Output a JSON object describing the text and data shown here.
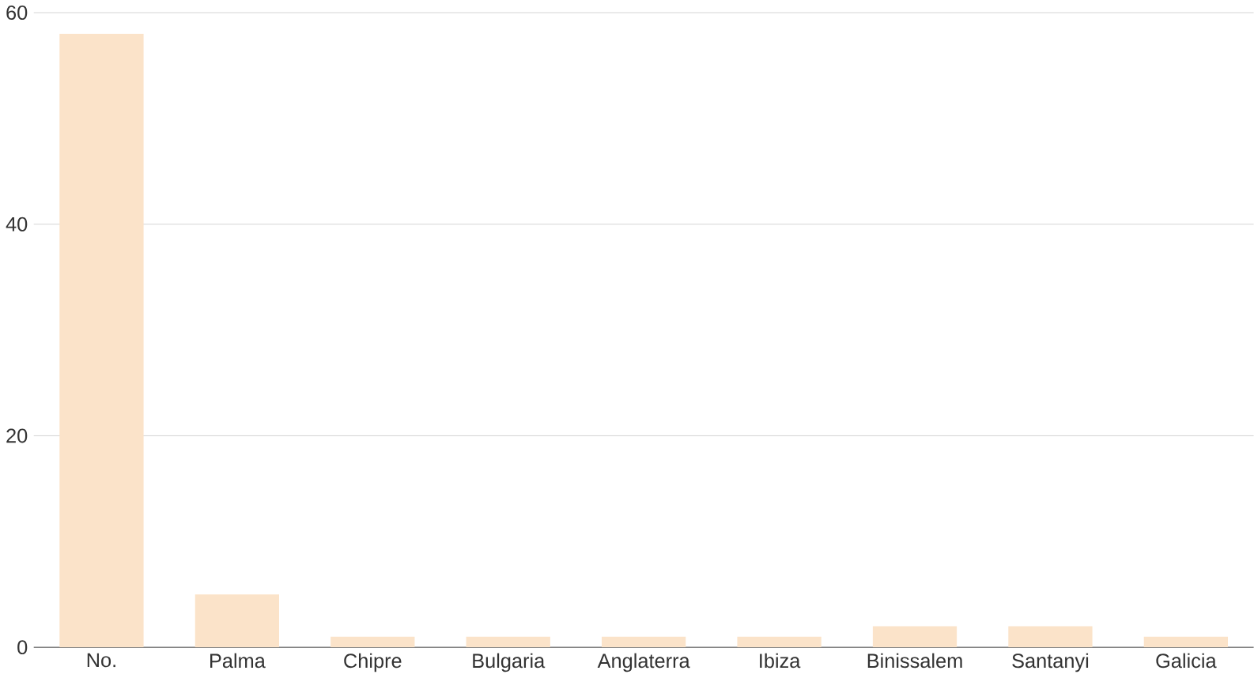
{
  "chart_data": {
    "type": "bar",
    "categories": [
      "No.",
      "Palma",
      "Chipre",
      "Bulgaria",
      "Anglaterra",
      "Ibiza",
      "Binissalem",
      "Santanyi",
      "Galicia"
    ],
    "values": [
      58,
      5,
      1,
      1,
      1,
      1,
      2,
      2,
      1
    ],
    "color": "#fbe3c9",
    "ylim": [
      0,
      60
    ],
    "yticks": [
      0,
      20,
      40,
      60
    ],
    "grid": "y"
  }
}
